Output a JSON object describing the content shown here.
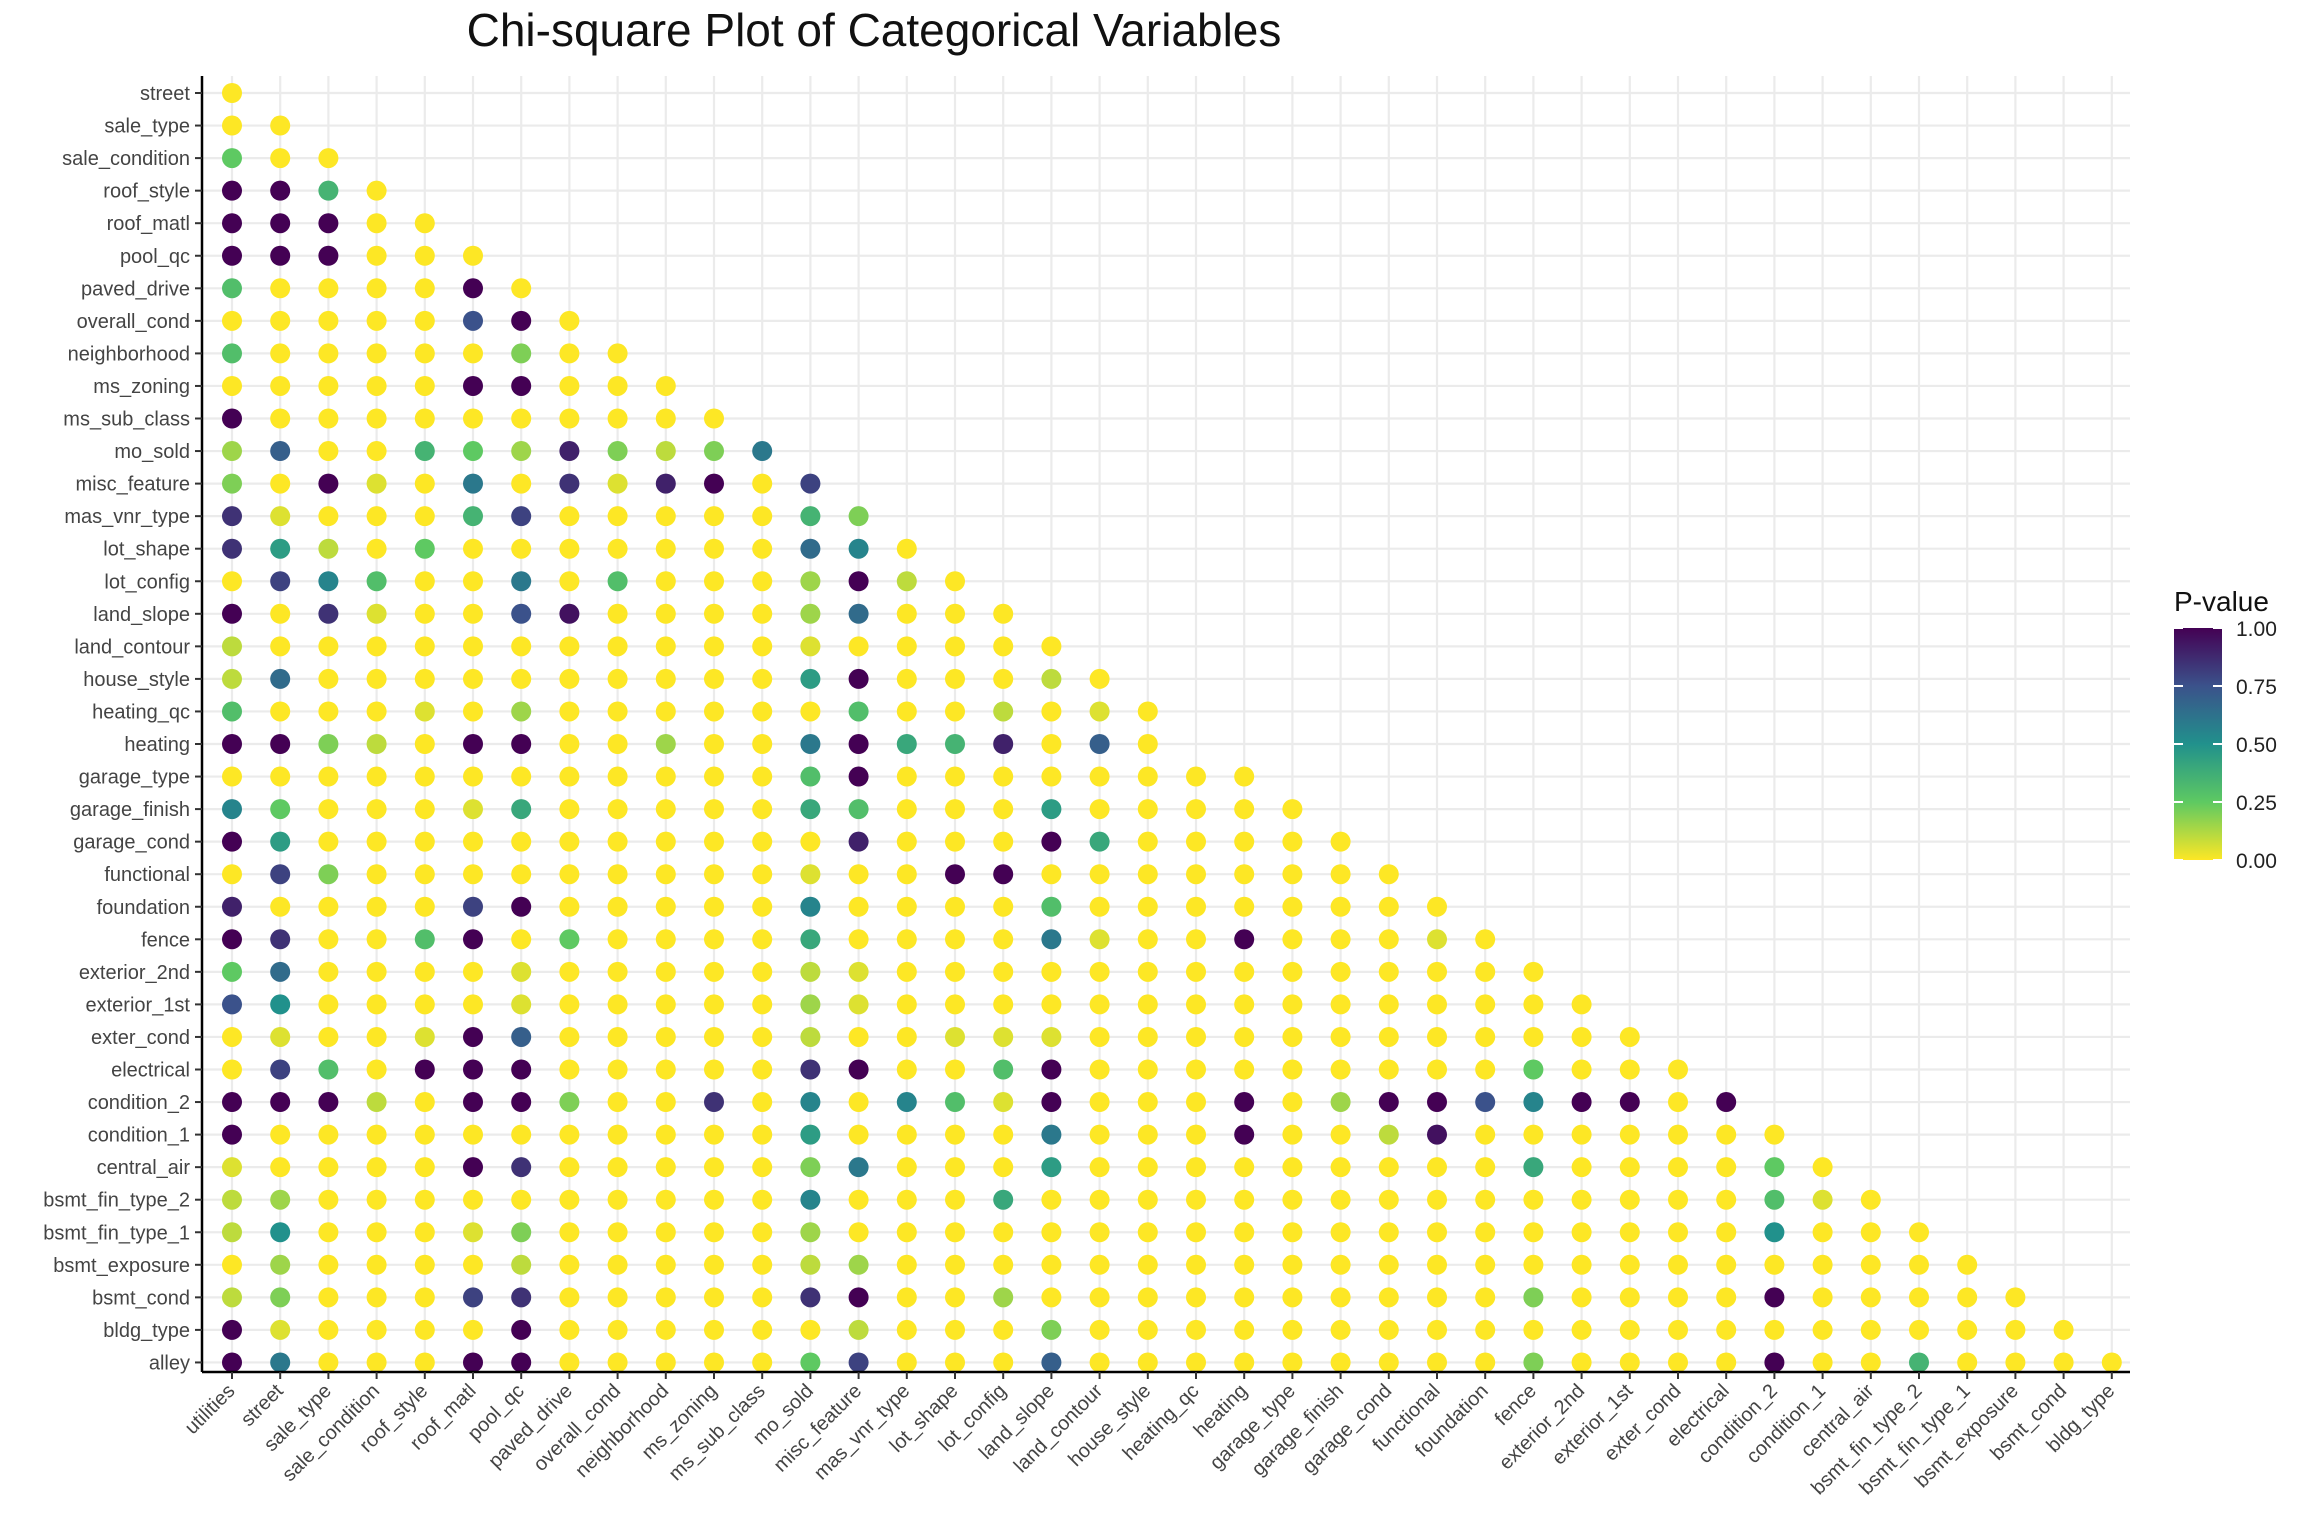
{
  "chart_data": {
    "type": "scatter",
    "title": "Chi-square Plot of Categorical Variables",
    "xlabel": "",
    "ylabel": "",
    "x_categories": [
      "utilities",
      "street",
      "sale_type",
      "sale_condition",
      "roof_style",
      "roof_matl",
      "pool_qc",
      "paved_drive",
      "overall_cond",
      "neighborhood",
      "ms_zoning",
      "ms_sub_class",
      "mo_sold",
      "misc_feature",
      "mas_vnr_type",
      "lot_shape",
      "lot_config",
      "land_slope",
      "land_contour",
      "house_style",
      "heating_qc",
      "heating",
      "garage_type",
      "garage_finish",
      "garage_cond",
      "functional",
      "foundation",
      "fence",
      "exterior_2nd",
      "exterior_1st",
      "exter_cond",
      "electrical",
      "condition_2",
      "condition_1",
      "central_air",
      "bsmt_fin_type_2",
      "bsmt_fin_type_1",
      "bsmt_exposure",
      "bsmt_cond",
      "bldg_type"
    ],
    "y_categories": [
      "street",
      "sale_type",
      "sale_condition",
      "roof_style",
      "roof_matl",
      "pool_qc",
      "paved_drive",
      "overall_cond",
      "neighborhood",
      "ms_zoning",
      "ms_sub_class",
      "mo_sold",
      "misc_feature",
      "mas_vnr_type",
      "lot_shape",
      "lot_config",
      "land_slope",
      "land_contour",
      "house_style",
      "heating_qc",
      "heating",
      "garage_type",
      "garage_finish",
      "garage_cond",
      "functional",
      "foundation",
      "fence",
      "exterior_2nd",
      "exterior_1st",
      "exter_cond",
      "electrical",
      "condition_2",
      "condition_1",
      "central_air",
      "bsmt_fin_type_2",
      "bsmt_fin_type_1",
      "bsmt_exposure",
      "bsmt_cond",
      "bldg_type",
      "alley"
    ],
    "color_scale": {
      "name": "viridis",
      "title": "P-value",
      "range": [
        0,
        1
      ],
      "ticks": [
        "0.00",
        "0.25",
        "0.50",
        "0.75",
        "1.00"
      ],
      "stops": [
        "#fde725",
        "#5ec962",
        "#21918c",
        "#3b528b",
        "#440154"
      ]
    },
    "grid": true,
    "legend_position": "right",
    "p_value_rows": [
      [
        0
      ],
      [
        0,
        0
      ],
      [
        0.25,
        0,
        0
      ],
      [
        1,
        1,
        0.35,
        0
      ],
      [
        1,
        1,
        1,
        0,
        0
      ],
      [
        1,
        1,
        1,
        0,
        0,
        0
      ],
      [
        0.3,
        0,
        0,
        0,
        0,
        1,
        0
      ],
      [
        0,
        0,
        0,
        0,
        0,
        0.75,
        1,
        0
      ],
      [
        0.3,
        0,
        0,
        0,
        0,
        0,
        0.2,
        0,
        0
      ],
      [
        0,
        0,
        0,
        0,
        0,
        1,
        1,
        0,
        0,
        0
      ],
      [
        1,
        0,
        0,
        0,
        0,
        0,
        0,
        0,
        0,
        0,
        0
      ],
      [
        0.15,
        0.7,
        0,
        0,
        0.35,
        0.25,
        0.15,
        0.9,
        0.2,
        0.1,
        0.2,
        0.6
      ],
      [
        0.2,
        0,
        1,
        0.05,
        0,
        0.6,
        0,
        0.85,
        0.05,
        0.9,
        1,
        0,
        0.8
      ],
      [
        0.85,
        0.05,
        0,
        0,
        0,
        0.35,
        0.8,
        0,
        0,
        0,
        0,
        0,
        0.35,
        0.2
      ],
      [
        0.85,
        0.45,
        0.1,
        0,
        0.25,
        0,
        0,
        0,
        0,
        0,
        0,
        0,
        0.65,
        0.55,
        0
      ],
      [
        0,
        0.8,
        0.55,
        0.3,
        0,
        0,
        0.6,
        0,
        0.3,
        0,
        0,
        0,
        0.15,
        1,
        0.1,
        0
      ],
      [
        1,
        0,
        0.85,
        0.05,
        0,
        0,
        0.75,
        0.95,
        0,
        0,
        0,
        0,
        0.15,
        0.65,
        0,
        0,
        0
      ],
      [
        0.1,
        0,
        0,
        0,
        0,
        0,
        0,
        0,
        0,
        0,
        0,
        0,
        0.05,
        0,
        0,
        0,
        0,
        0
      ],
      [
        0.1,
        0.65,
        0,
        0,
        0,
        0,
        0,
        0,
        0,
        0,
        0,
        0,
        0.45,
        1,
        0,
        0,
        0,
        0.1,
        0
      ],
      [
        0.3,
        0,
        0,
        0,
        0.05,
        0,
        0.15,
        0,
        0,
        0,
        0,
        0,
        0,
        0.3,
        0,
        0,
        0.1,
        0,
        0.05,
        0
      ],
      [
        1,
        1,
        0.2,
        0.1,
        0,
        1,
        1,
        0,
        0,
        0.15,
        0,
        0,
        0.6,
        1,
        0.4,
        0.35,
        0.9,
        0,
        0.7,
        0
      ],
      [
        0,
        0,
        0,
        0,
        0,
        0,
        0,
        0,
        0,
        0,
        0,
        0,
        0.3,
        1,
        0,
        0,
        0,
        0,
        0,
        0,
        0,
        0
      ],
      [
        0.55,
        0.25,
        0,
        0,
        0,
        0.05,
        0.4,
        0,
        0,
        0,
        0,
        0,
        0.4,
        0.3,
        0,
        0,
        0,
        0.45,
        0,
        0,
        0,
        0,
        0
      ],
      [
        1,
        0.45,
        0,
        0,
        0,
        0,
        0,
        0,
        0,
        0,
        0,
        0,
        0,
        0.9,
        0,
        0,
        0,
        1,
        0.4,
        0,
        0,
        0,
        0,
        0
      ],
      [
        0,
        0.8,
        0.2,
        0,
        0,
        0,
        0,
        0,
        0,
        0,
        0,
        0,
        0.05,
        0,
        0,
        1,
        1,
        0,
        0,
        0,
        0,
        0,
        0,
        0,
        0
      ],
      [
        0.9,
        0,
        0,
        0,
        0,
        0.8,
        1,
        0,
        0,
        0,
        0,
        0,
        0.55,
        0,
        0,
        0,
        0,
        0.3,
        0,
        0,
        0,
        0,
        0,
        0,
        0,
        0
      ],
      [
        1,
        0.85,
        0,
        0,
        0.3,
        1,
        0,
        0.25,
        0,
        0,
        0,
        0,
        0.4,
        0,
        0,
        0,
        0,
        0.6,
        0.05,
        0,
        0,
        1,
        0,
        0,
        0,
        0.05,
        0
      ],
      [
        0.25,
        0.65,
        0,
        0,
        0,
        0,
        0.05,
        0,
        0,
        0,
        0,
        0,
        0.1,
        0.05,
        0,
        0,
        0,
        0,
        0,
        0,
        0,
        0,
        0,
        0,
        0,
        0,
        0,
        0
      ],
      [
        0.75,
        0.5,
        0,
        0,
        0,
        0,
        0.05,
        0,
        0,
        0,
        0,
        0,
        0.15,
        0.05,
        0,
        0,
        0,
        0,
        0,
        0,
        0,
        0,
        0,
        0,
        0,
        0,
        0,
        0,
        0
      ],
      [
        0,
        0.05,
        0,
        0,
        0.05,
        1,
        0.7,
        0,
        0,
        0,
        0,
        0,
        0.1,
        0,
        0,
        0.05,
        0.05,
        0.05,
        0,
        0,
        0,
        0,
        0,
        0,
        0,
        0,
        0,
        0,
        0,
        0
      ],
      [
        0,
        0.8,
        0.3,
        0,
        1,
        1,
        1,
        0,
        0,
        0,
        0,
        0,
        0.85,
        1,
        0,
        0,
        0.3,
        1,
        0,
        0,
        0,
        0,
        0,
        0,
        0,
        0,
        0,
        0.25,
        0,
        0,
        0
      ],
      [
        1,
        1,
        1,
        0.1,
        0,
        1,
        1,
        0.2,
        0,
        0,
        0.85,
        0,
        0.55,
        0,
        0.55,
        0.3,
        0.05,
        1,
        0,
        0,
        0,
        1,
        0,
        0.15,
        1,
        1,
        0.75,
        0.55,
        1,
        1,
        0,
        1
      ],
      [
        1,
        0,
        0,
        0,
        0,
        0,
        0,
        0,
        0,
        0,
        0,
        0,
        0.45,
        0,
        0,
        0,
        0,
        0.6,
        0,
        0,
        0,
        1,
        0,
        0,
        0.1,
        0.95,
        0,
        0,
        0,
        0,
        0,
        0,
        0
      ],
      [
        0.05,
        0,
        0,
        0,
        0,
        1,
        0.85,
        0,
        0,
        0,
        0,
        0,
        0.2,
        0.6,
        0,
        0,
        0,
        0.45,
        0,
        0,
        0,
        0,
        0,
        0,
        0,
        0,
        0,
        0.4,
        0,
        0,
        0,
        0,
        0.25,
        0
      ],
      [
        0.1,
        0.15,
        0,
        0,
        0,
        0,
        0,
        0,
        0,
        0,
        0,
        0,
        0.55,
        0,
        0,
        0,
        0.4,
        0,
        0,
        0,
        0,
        0,
        0,
        0,
        0,
        0,
        0,
        0,
        0,
        0,
        0,
        0,
        0.3,
        0.05,
        0
      ],
      [
        0.1,
        0.5,
        0,
        0,
        0,
        0.05,
        0.2,
        0,
        0,
        0,
        0,
        0,
        0.15,
        0,
        0,
        0,
        0,
        0,
        0,
        0,
        0,
        0,
        0,
        0,
        0,
        0,
        0,
        0,
        0,
        0,
        0,
        0,
        0.5,
        0,
        0,
        0
      ],
      [
        0,
        0.15,
        0,
        0,
        0,
        0,
        0.1,
        0,
        0,
        0,
        0,
        0,
        0.1,
        0.15,
        0,
        0,
        0,
        0,
        0,
        0,
        0,
        0,
        0,
        0,
        0,
        0,
        0,
        0,
        0,
        0,
        0,
        0,
        0,
        0,
        0,
        0,
        0
      ],
      [
        0.1,
        0.2,
        0,
        0,
        0,
        0.8,
        0.85,
        0,
        0,
        0,
        0,
        0,
        0.85,
        1,
        0,
        0,
        0.15,
        0,
        0,
        0,
        0,
        0,
        0,
        0,
        0,
        0,
        0,
        0.2,
        0,
        0,
        0,
        0,
        1,
        0,
        0,
        0,
        0,
        0
      ],
      [
        1,
        0.05,
        0,
        0,
        0,
        0,
        1,
        0,
        0,
        0,
        0,
        0,
        0,
        0.1,
        0,
        0,
        0,
        0.2,
        0,
        0,
        0,
        0,
        0,
        0,
        0,
        0,
        0,
        0,
        0,
        0,
        0,
        0,
        0,
        0,
        0,
        0,
        0,
        0,
        0
      ],
      [
        1,
        0.6,
        0,
        0,
        0,
        1,
        1,
        0,
        0,
        0,
        0,
        0,
        0.25,
        0.8,
        0,
        0,
        0,
        0.7,
        0,
        0,
        0,
        0,
        0,
        0,
        0,
        0,
        0,
        0.2,
        0,
        0,
        0,
        0,
        1,
        0,
        0,
        0.35,
        0,
        0,
        0,
        0
      ]
    ]
  }
}
